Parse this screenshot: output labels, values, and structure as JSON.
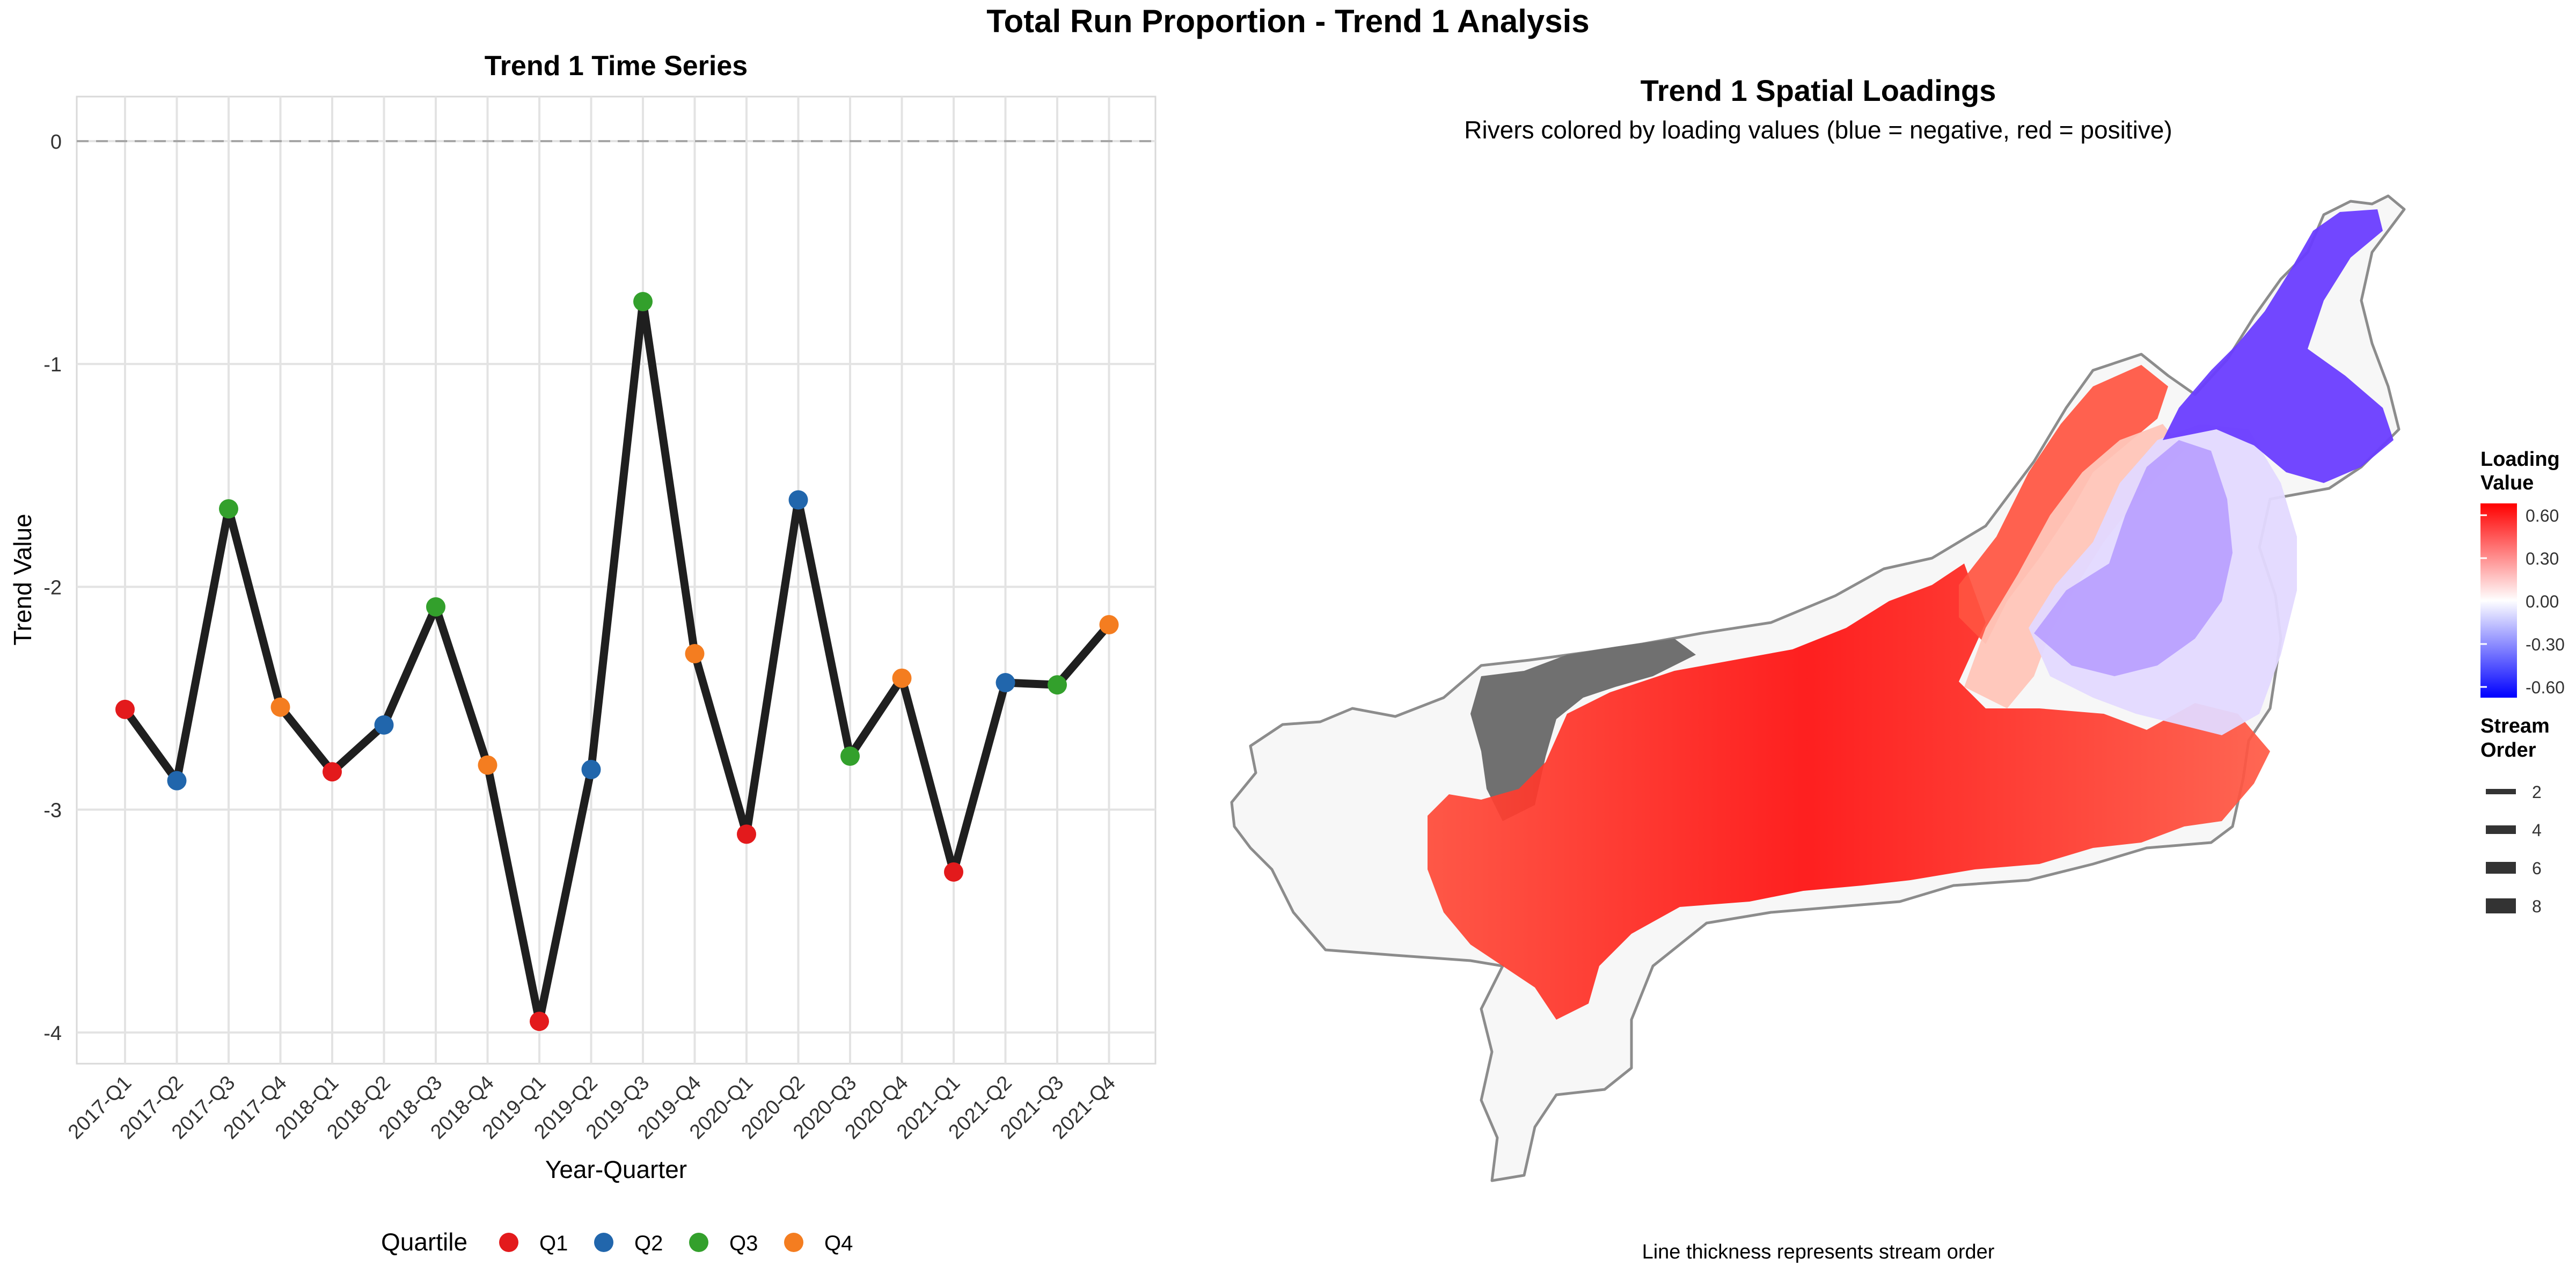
{
  "figure_title": "Total Run Proportion - Trend 1 Analysis",
  "colors": {
    "line": "#1f1f1f",
    "Q1": "#e31a1c",
    "Q2": "#2166ac",
    "Q3": "#33a02c",
    "Q4": "#f47d20",
    "zero_line": "#a6a6a6",
    "grid": "#e3e3e3",
    "panel_border": "#d9d9d9",
    "grey_rivers": "#707070",
    "basin_fill": "#f7f7f7",
    "basin_border": "#8c8c8c"
  },
  "chart_data": [
    {
      "type": "line",
      "title": "Trend 1 Time Series",
      "xlabel": "Year-Quarter",
      "ylabel": "Trend Value",
      "categories": [
        "2017-Q1",
        "2017-Q2",
        "2017-Q3",
        "2017-Q4",
        "2018-Q1",
        "2018-Q2",
        "2018-Q3",
        "2018-Q4",
        "2019-Q1",
        "2019-Q2",
        "2019-Q3",
        "2019-Q4",
        "2020-Q1",
        "2020-Q2",
        "2020-Q3",
        "2020-Q4",
        "2021-Q1",
        "2021-Q2",
        "2021-Q3",
        "2021-Q4"
      ],
      "series": [
        {
          "values": [
            -2.55,
            -2.87,
            -1.65,
            -2.54,
            -2.83,
            -2.62,
            -2.09,
            -2.8,
            -3.95,
            -2.82,
            -0.72,
            -2.3,
            -3.11,
            -1.61,
            -2.76,
            -2.41,
            -3.28,
            -2.43,
            -2.44,
            -2.17
          ]
        }
      ],
      "point_quartile": [
        "Q1",
        "Q2",
        "Q3",
        "Q4",
        "Q1",
        "Q2",
        "Q3",
        "Q4",
        "Q1",
        "Q2",
        "Q3",
        "Q4",
        "Q1",
        "Q2",
        "Q3",
        "Q4",
        "Q1",
        "Q2",
        "Q3",
        "Q4"
      ],
      "ylim": [
        -4.14,
        0.2
      ],
      "yticks": [
        0,
        -1,
        -2,
        -3,
        -4
      ],
      "reference_line": 0,
      "grid": true,
      "legend": {
        "position": "bottom",
        "title": "Quartile",
        "entries": [
          "Q1",
          "Q2",
          "Q3",
          "Q4"
        ]
      }
    },
    {
      "type": "map",
      "title": "Trend 1 Spatial Loadings",
      "subtitle": "Rivers colored by loading values (blue = negative, red = positive)",
      "caption": "Line thickness represents stream order",
      "colorbar": {
        "title": "Loading\nValue",
        "ticks": [
          "0.60",
          "0.30",
          "0.00",
          "-0.30",
          "-0.60"
        ],
        "range": [
          -0.6,
          0.6
        ],
        "low_color": "#0000ff",
        "mid_color": "#ffffff",
        "high_color": "#ff0000"
      },
      "size_legend": {
        "title": "Stream\nOrder",
        "values": [
          "2",
          "4",
          "6",
          "8"
        ]
      }
    }
  ]
}
